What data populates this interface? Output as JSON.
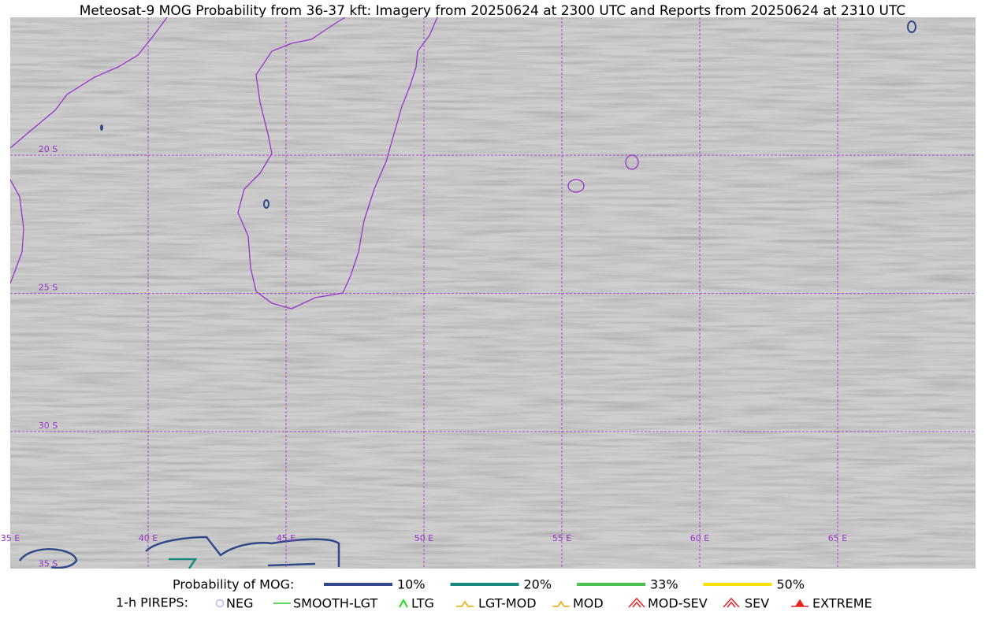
{
  "map": {
    "title": "Meteosat-9 MOG Probability from 36-37 kft: Imagery from 20250624 at 2300 UTC and Reports from 20250624 at 2310 UTC",
    "lon_labels": [
      "35 E",
      "40 E",
      "45 E",
      "50 E",
      "55 E",
      "60 E",
      "65 E"
    ],
    "lat_labels": [
      "20 S",
      "25 S",
      "30 S",
      "35 S"
    ],
    "probability_legend": {
      "label": "Probability of MOG:",
      "items": [
        {
          "label": "10%",
          "color": "#334a8a"
        },
        {
          "label": "20%",
          "color": "#1a8a80"
        },
        {
          "label": "33%",
          "color": "#4cc050"
        },
        {
          "label": "50%",
          "color": "#f5e010"
        }
      ]
    },
    "pirep_legend": {
      "label": "1-h PIREPS:",
      "items": [
        {
          "label": "NEG",
          "color": "#b8b8f0"
        },
        {
          "label": "SMOOTH-LGT",
          "color": "#33cc33"
        },
        {
          "label": "LTG",
          "color": "#22dd22"
        },
        {
          "label": "LGT-MOD",
          "color": "#f0b020"
        },
        {
          "label": "MOD",
          "color": "#f0b020"
        },
        {
          "label": "MOD-SEV",
          "color": "#ee2222"
        },
        {
          "label": "SEV",
          "color": "#ee2222"
        },
        {
          "label": "EXTREME",
          "color": "#ee2222"
        }
      ]
    }
  }
}
